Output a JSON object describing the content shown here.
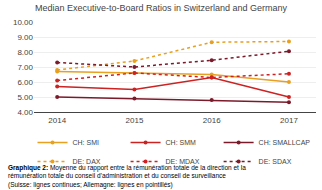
{
  "chart_data": {
    "type": "line",
    "title": "Median Executive-to-Board Ratios in Switzerland and Germany",
    "x": [
      2014,
      2015,
      2016,
      2017
    ],
    "series": [
      {
        "name": "CH: SMI",
        "color": "#E8A020",
        "line_style": "solid",
        "marker": "circle",
        "values": [
          6.7,
          6.6,
          6.5,
          6.0
        ]
      },
      {
        "name": "CH: SMM",
        "color": "#CC2222",
        "line_style": "solid",
        "marker": "circle",
        "values": [
          5.7,
          5.5,
          6.3,
          5.0
        ]
      },
      {
        "name": "CH: SMALLCAP",
        "color": "#7B1A2A",
        "line_style": "solid",
        "marker": "circle",
        "values": [
          5.0,
          4.9,
          4.8,
          4.65
        ]
      },
      {
        "name": "DE: DAX",
        "color": "#E8A020",
        "line_style": "dotted",
        "marker": "circle",
        "values": [
          6.8,
          7.4,
          8.65,
          8.7
        ]
      },
      {
        "name": "DE: MDAX",
        "color": "#CC2222",
        "line_style": "dotted",
        "marker": "circle",
        "values": [
          6.1,
          6.6,
          6.3,
          6.55
        ]
      },
      {
        "name": "DE: SDAX",
        "color": "#7B1A2A",
        "line_style": "dotted",
        "marker": "circle",
        "values": [
          7.3,
          7.0,
          7.45,
          8.05
        ]
      }
    ],
    "xlim": [
      2013.7,
      2017.35
    ],
    "xticks": [
      2014,
      2015,
      2016,
      2017
    ],
    "ylim": [
      4.0,
      10.0
    ],
    "yticks": [
      {
        "value": 4.0,
        "label": "4.00"
      },
      {
        "value": 5.0,
        "label": "5.00"
      },
      {
        "value": 6.0,
        "label": "6.00"
      },
      {
        "value": 7.0,
        "label": "7.00"
      },
      {
        "value": 8.0,
        "label": "8.00"
      },
      {
        "value": 9.0,
        "label": "9.00"
      },
      {
        "value": 10.0,
        "label": "10.00"
      }
    ],
    "grid": "y",
    "legend": "bottom",
    "annotations": [
      "Graphique 2:",
      "Moyenne du rapport entre la rémunération totale de la direction et la\nrémunération totale du conseil d’administration et du conseil de surveillance\n(Suisse: lignes continues; Allemagne: lignes en pointillés)"
    ]
  }
}
